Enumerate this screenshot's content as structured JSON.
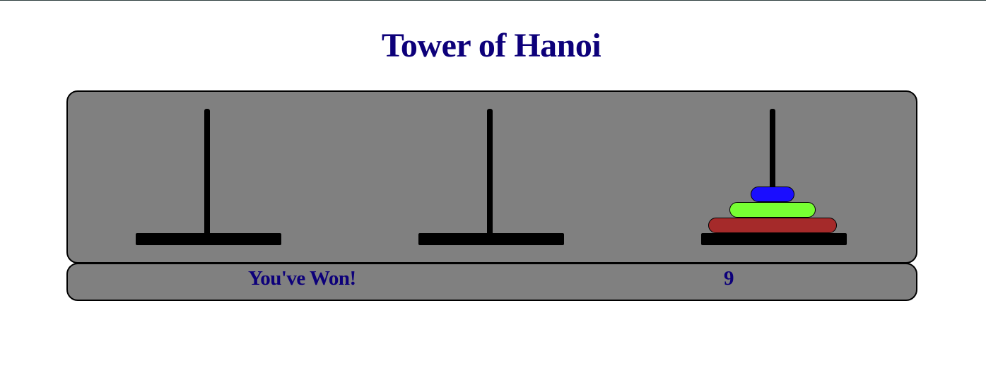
{
  "title": "Tower of Hanoi",
  "status": {
    "message": "You've Won!",
    "moves": "9"
  },
  "colors": {
    "text": "#0d007a",
    "board": "#808080",
    "disk_small": "#1a0dff",
    "disk_medium": "#77ff33",
    "disk_large": "#a52a2a"
  },
  "pegs": [
    {
      "name": "left",
      "disks": []
    },
    {
      "name": "middle",
      "disks": []
    },
    {
      "name": "right",
      "disks": [
        {
          "size": 3,
          "color": "#a52a2a"
        },
        {
          "size": 2,
          "color": "#77ff33"
        },
        {
          "size": 1,
          "color": "#1a0dff"
        }
      ]
    }
  ]
}
